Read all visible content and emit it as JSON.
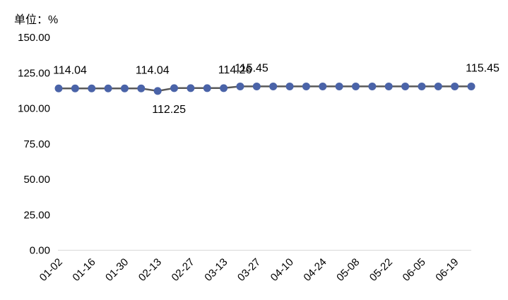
{
  "chart_data": {
    "type": "line",
    "unit_label": "单位：%",
    "ylim": [
      0,
      150
    ],
    "y_ticks": [
      "0.00",
      "25.00",
      "50.00",
      "75.00",
      "100.00",
      "125.00",
      "150.00"
    ],
    "x_tick_labels": [
      "01-02",
      "01-16",
      "01-30",
      "02-13",
      "02-27",
      "03-13",
      "03-27",
      "04-10",
      "04-24",
      "05-08",
      "05-22",
      "06-05",
      "06-19"
    ],
    "grid": false,
    "series": [
      {
        "color": "#4a63a8",
        "line_color": "#595959",
        "values": [
          114.04,
          114.04,
          114.04,
          114.04,
          114.04,
          114.04,
          112.25,
          114.26,
          114.26,
          114.26,
          114.26,
          115.45,
          115.45,
          115.45,
          115.45,
          115.45,
          115.45,
          115.45,
          115.45,
          115.45,
          115.45,
          115.45,
          115.45,
          115.45,
          115.45,
          115.45
        ]
      }
    ],
    "data_labels": [
      {
        "index": 0,
        "text": "114.04"
      },
      {
        "index": 5,
        "text": "114.04"
      },
      {
        "index": 6,
        "text": "112.25"
      },
      {
        "index": 10,
        "text": "114.26"
      },
      {
        "index": 11,
        "text": "115.45"
      },
      {
        "index": 25,
        "text": "115.45"
      }
    ]
  }
}
